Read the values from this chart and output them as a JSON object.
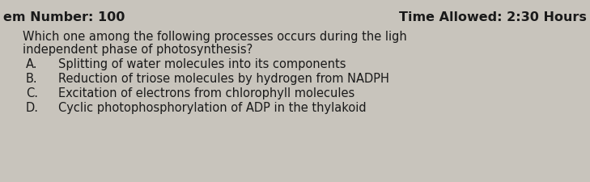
{
  "background_color": "#c8c4bc",
  "header_left": "em Number: 100",
  "header_right": "Time Allowed: 2:30 Hours",
  "question_line1": "Which one among the following processes occurs during the ligh",
  "question_line2": "independent phase of photosynthesis?",
  "options": [
    {
      "label": "A.",
      "text": "Splitting of water molecules into its components"
    },
    {
      "label": "B.",
      "text": "Reduction of triose molecules by hydrogen from NADPH"
    },
    {
      "label": "C.",
      "text": "Excitation of electrons from chlorophyll molecules"
    },
    {
      "label": "D.",
      "text": "Cyclic photophosphorylation of ADP in the thylakoid"
    }
  ],
  "header_fontsize": 11.5,
  "question_fontsize": 10.5,
  "option_fontsize": 10.5,
  "text_color": "#1a1a1a"
}
